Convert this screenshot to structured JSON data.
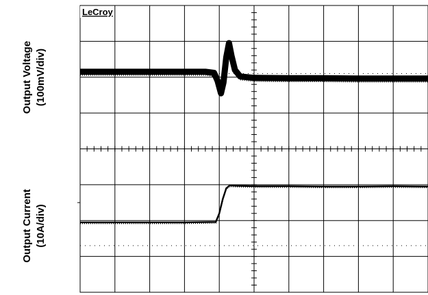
{
  "chart_data": [
    {
      "type": "line",
      "brand": "LeCroy",
      "ylabel_line1": "Output Voltage",
      "ylabel_line2": "(100mV/div)",
      "x_divisions": 10,
      "y_divisions": 4,
      "trace_color": "#000000",
      "series": [
        {
          "x": [
            0.0,
            1.0,
            2.0,
            3.0,
            3.6,
            3.85,
            3.95,
            4.05,
            4.12,
            4.2,
            4.28,
            4.35,
            4.45,
            4.6,
            5.0,
            6.0,
            7.0,
            8.0,
            9.0,
            10.0
          ],
          "y": [
            2.15,
            2.15,
            2.15,
            2.15,
            2.15,
            2.12,
            1.9,
            1.55,
            1.85,
            2.55,
            2.95,
            2.6,
            2.2,
            2.02,
            1.98,
            1.97,
            1.97,
            1.96,
            1.96,
            1.96
          ]
        }
      ]
    },
    {
      "type": "line",
      "ylabel_line1": "Output Current",
      "ylabel_line2": "(10A/div)",
      "x_divisions": 10,
      "y_divisions": 4,
      "trace_color": "#000000",
      "series": [
        {
          "x": [
            0.0,
            1.0,
            2.0,
            3.0,
            3.9,
            4.0,
            4.1,
            4.2,
            4.3,
            4.5,
            5.0,
            6.0,
            7.0,
            8.0,
            9.0,
            10.0
          ],
          "y": [
            1.95,
            1.95,
            1.95,
            1.95,
            1.96,
            2.2,
            2.6,
            2.9,
            2.98,
            2.97,
            2.96,
            2.96,
            2.95,
            2.95,
            2.96,
            2.95
          ]
        }
      ]
    }
  ]
}
